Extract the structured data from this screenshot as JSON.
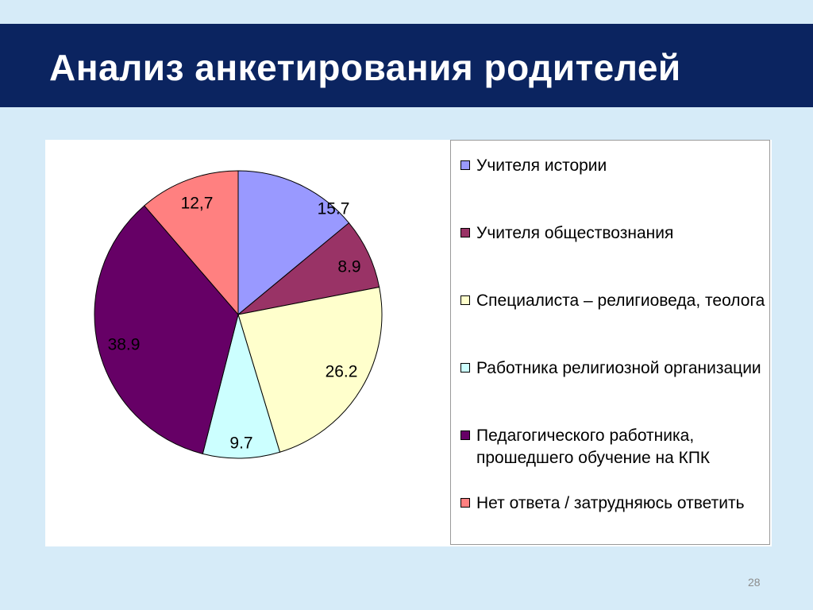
{
  "slide": {
    "title": "Анализ анкетирования родителей",
    "page_number": "28",
    "background_color": "#d6ebf8",
    "title_bar_color": "#0b2460"
  },
  "chart_data": {
    "type": "pie",
    "title": "",
    "legend_position": "right",
    "start_angle_deg": 0,
    "direction": "clockwise",
    "slices": [
      {
        "label": "Учителя истории",
        "value": 15.7,
        "value_label": "15.7",
        "color": "#9999ff"
      },
      {
        "label": "Учителя обществознания",
        "value": 8.9,
        "value_label": "8.9",
        "color": "#993366"
      },
      {
        "label": "Специалиста – религиоведа, теолога",
        "value": 26.2,
        "value_label": "26.2",
        "color": "#ffffcc"
      },
      {
        "label": "Работника религиозной организации",
        "value": 9.7,
        "value_label": "9.7",
        "color": "#ccffff"
      },
      {
        "label": "Педагогического работника, прошедшего обучение на КПК",
        "value": 38.9,
        "value_label": "38.9",
        "color": "#660066"
      },
      {
        "label": "Нет ответа / затрудняюсь ответить",
        "value": 12.7,
        "value_label": "12,7",
        "color": "#ff8080"
      }
    ]
  }
}
